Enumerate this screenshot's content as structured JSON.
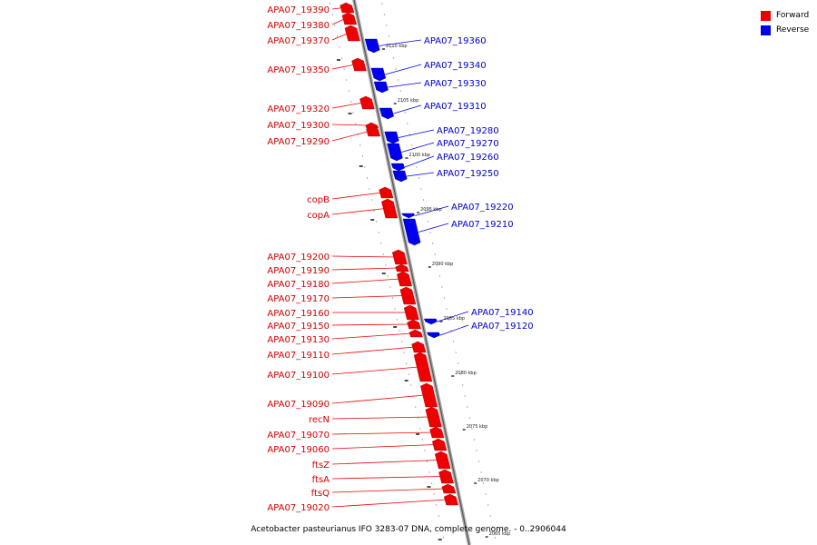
{
  "caption": "Acetobacter pasteurianus IFO 3283-07 DNA, complete genome. - 0..2906044",
  "legend": [
    {
      "label": "Forward",
      "color": "#ee0000"
    },
    {
      "label": "Reverse",
      "color": "#0000ee"
    }
  ],
  "colors": {
    "forward": "#ee0000",
    "reverse": "#0000ee",
    "axis": "#888888"
  },
  "forward_genes": [
    "APA07_19390",
    "APA07_19380",
    "APA07_19370",
    "APA07_19350",
    "APA07_19320",
    "APA07_19300",
    "APA07_19290",
    "copB",
    "copA",
    "APA07_19200",
    "APA07_19190",
    "APA07_19180",
    "APA07_19170",
    "APA07_19160",
    "APA07_19150",
    "APA07_19130",
    "APA07_19110",
    "APA07_19100",
    "APA07_19090",
    "recN",
    "APA07_19070",
    "APA07_19060",
    "ftsZ",
    "ftsA",
    "ftsQ",
    "APA07_19020"
  ],
  "reverse_genes": [
    "APA07_19360",
    "APA07_19340",
    "APA07_19330",
    "APA07_19310",
    "APA07_19280",
    "APA07_19270",
    "APA07_19260",
    "APA07_19250",
    "APA07_19220",
    "APA07_19210",
    "APA07_19140",
    "APA07_19120"
  ],
  "scale_labels": [
    "2110 kbp",
    "2105 kbp",
    "2100 kbp",
    "2095 kbp",
    "2090 kbp",
    "2085 kbp",
    "2080 kbp",
    "2075 kbp",
    "2070 kbp",
    "2065 kbp"
  ]
}
